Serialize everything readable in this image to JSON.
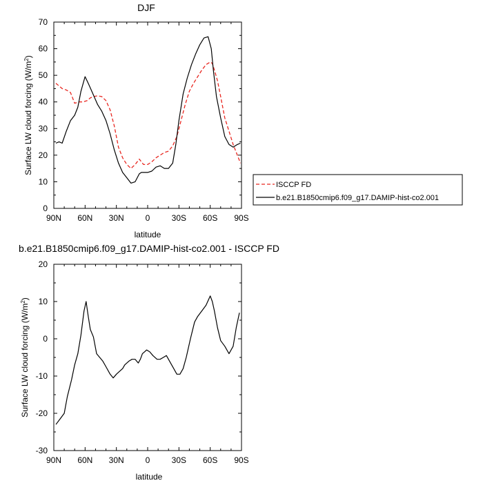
{
  "chart_data": [
    {
      "type": "line",
      "title": "DJF",
      "xlabel": "latitude",
      "ylabel": "Surface LW cloud forcing (W/m",
      "ylabel_sup": "2",
      "ylabel_end": ")",
      "xlim": [
        90,
        -90
      ],
      "ylim": [
        0,
        70
      ],
      "xticks": [
        90,
        60,
        30,
        0,
        -30,
        -60,
        -90
      ],
      "xtick_labels": [
        "90N",
        "60N",
        "30N",
        "0",
        "30S",
        "60S",
        "90S"
      ],
      "yticks": [
        0,
        10,
        20,
        30,
        40,
        50,
        60,
        70
      ],
      "ytick_labels": [
        "0",
        "10",
        "20",
        "30",
        "40",
        "50",
        "60",
        "70"
      ],
      "legend": {
        "placement": "right",
        "entries": [
          "ISCCP FD",
          "b.e21.B1850cmip6.f09_g17.DAMIP-hist-co2.001"
        ]
      },
      "series": [
        {
          "name": "ISCCP FD",
          "color": "#e8261f",
          "dash": true,
          "x": [
            88,
            85,
            82,
            78,
            74,
            70,
            66,
            62,
            58,
            55,
            52,
            48,
            44,
            40,
            36,
            32,
            28,
            24,
            20,
            16,
            12,
            8,
            4,
            0,
            -4,
            -8,
            -12,
            -16,
            -20,
            -24,
            -28,
            -32,
            -36,
            -40,
            -44,
            -48,
            -52,
            -56,
            -60,
            -62,
            -64,
            -67,
            -70,
            -74,
            -78,
            -82,
            -86,
            -89
          ],
          "y": [
            47,
            46,
            45,
            44.5,
            43.5,
            39.5,
            40,
            40,
            40.5,
            41.5,
            42,
            42.3,
            42,
            40.5,
            37,
            31,
            23,
            19,
            16.5,
            15,
            16.5,
            18.5,
            16.5,
            16.5,
            17.5,
            19,
            20,
            21,
            21.5,
            23.5,
            27,
            33,
            39,
            44,
            47,
            49.5,
            52,
            54,
            55,
            54.5,
            52,
            48,
            42,
            34,
            29,
            24,
            20,
            17
          ]
        },
        {
          "name": "b.e21.B1850cmip6.f09_g17.DAMIP-hist-co2.001",
          "color": "#000000",
          "dash": false,
          "x": [
            88,
            85,
            82,
            78,
            74,
            70,
            67,
            64,
            60,
            57,
            53,
            48,
            44,
            40,
            36,
            32,
            28,
            24,
            20,
            16,
            12,
            10,
            8,
            6,
            4,
            0,
            -4,
            -8,
            -12,
            -16,
            -20,
            -24,
            -27,
            -30,
            -34,
            -38,
            -42,
            -46,
            -50,
            -54,
            -58,
            -61,
            -63,
            -66,
            -70,
            -74,
            -78,
            -82,
            -86,
            -89
          ],
          "y": [
            24.5,
            25,
            24.5,
            29,
            33,
            35,
            38,
            44,
            49.5,
            47,
            43.5,
            39,
            36.5,
            33,
            28,
            22,
            17,
            13.5,
            11.5,
            9.5,
            10,
            11.5,
            13,
            13.5,
            13.5,
            13.5,
            14,
            15.5,
            16,
            15,
            15,
            17,
            24,
            33,
            43,
            49,
            54,
            58,
            61.5,
            64,
            64.5,
            60,
            52,
            42,
            34,
            27,
            24,
            23,
            24,
            24.5
          ]
        }
      ]
    },
    {
      "type": "line",
      "title": "b.e21.B1850cmip6.f09_g17.DAMIP-hist-co2.001 - ISCCP FD",
      "xlabel": "latitude",
      "ylabel": "Surface LW cloud forcing (W/m",
      "ylabel_sup": "2",
      "ylabel_end": ")",
      "xlim": [
        90,
        -90
      ],
      "ylim": [
        -30,
        20
      ],
      "xticks": [
        90,
        60,
        30,
        0,
        -30,
        -60,
        -90
      ],
      "xtick_labels": [
        "90N",
        "60N",
        "30N",
        "0",
        "30S",
        "60S",
        "90S"
      ],
      "yticks": [
        -30,
        -20,
        -10,
        0,
        10,
        20
      ],
      "ytick_labels": [
        "-30",
        "-20",
        "-10",
        "0",
        "10",
        "20"
      ],
      "series": [
        {
          "color": "#000000",
          "dash": false,
          "x": [
            88,
            84,
            80,
            77,
            73,
            70,
            67,
            64,
            61,
            59,
            57,
            55,
            52,
            49,
            46,
            43,
            40,
            36,
            33,
            30,
            28,
            24,
            22,
            18,
            15,
            12,
            9,
            7,
            5,
            3,
            1,
            -2,
            -5,
            -9,
            -12,
            -15,
            -18,
            -22,
            -25,
            -28,
            -31,
            -34,
            -37,
            -41,
            -45,
            -48,
            -52,
            -56,
            -60,
            -62,
            -64,
            -67,
            -70,
            -74,
            -78,
            -82,
            -85,
            -88
          ],
          "y": [
            -23,
            -21.5,
            -20,
            -15.5,
            -11,
            -7,
            -4,
            1,
            7.5,
            10,
            6,
            2.5,
            0.5,
            -4,
            -5,
            -6,
            -7.5,
            -9.5,
            -10.5,
            -9.5,
            -9,
            -8,
            -7,
            -6,
            -5.5,
            -5.5,
            -6.5,
            -5.5,
            -4,
            -3.5,
            -3,
            -3.5,
            -4.5,
            -5.5,
            -5.5,
            -5,
            -4.5,
            -6.5,
            -8,
            -9.5,
            -9.5,
            -8,
            -5,
            0,
            4.5,
            6,
            7.5,
            9,
            11.5,
            10,
            7.5,
            3,
            -0.5,
            -2,
            -4,
            -2,
            3,
            7
          ]
        }
      ]
    }
  ]
}
